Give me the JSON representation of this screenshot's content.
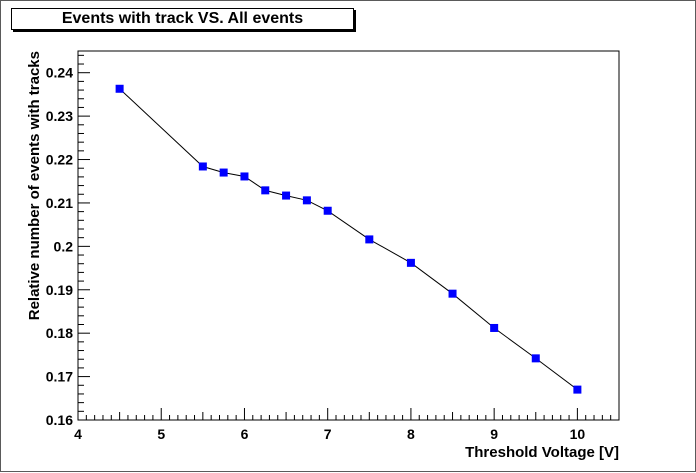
{
  "chart_data": {
    "type": "scatter",
    "title": "Events with track VS. All events",
    "xlabel": "Threshold Voltage [V]",
    "ylabel": "Relative number of events with tracks",
    "xlim": [
      4,
      10.5
    ],
    "ylim": [
      0.16,
      0.245
    ],
    "x_ticks": [
      4,
      5,
      6,
      7,
      8,
      9,
      10
    ],
    "x_tick_labels": [
      "4",
      "5",
      "6",
      "7",
      "8",
      "9",
      "10"
    ],
    "y_ticks": [
      0.16,
      0.17,
      0.18,
      0.19,
      0.2,
      0.21,
      0.22,
      0.23,
      0.24
    ],
    "y_tick_labels": [
      "0.16",
      "0.17",
      "0.18",
      "0.19",
      "0.2",
      "0.21",
      "0.22",
      "0.23",
      "0.24"
    ],
    "grid": false,
    "legend": "none",
    "marker_color": "#0000ff",
    "line_color": "#000000",
    "series": [
      {
        "x": [
          4.5,
          5.5,
          5.75,
          6.0,
          6.25,
          6.5,
          6.75,
          7.0,
          7.5,
          8.0,
          8.5,
          9.0,
          9.5,
          10.0
        ],
        "y": [
          0.2363,
          0.2184,
          0.217,
          0.2161,
          0.2129,
          0.2117,
          0.2106,
          0.2082,
          0.2016,
          0.1962,
          0.1891,
          0.1812,
          0.1742,
          0.167
        ]
      }
    ]
  }
}
